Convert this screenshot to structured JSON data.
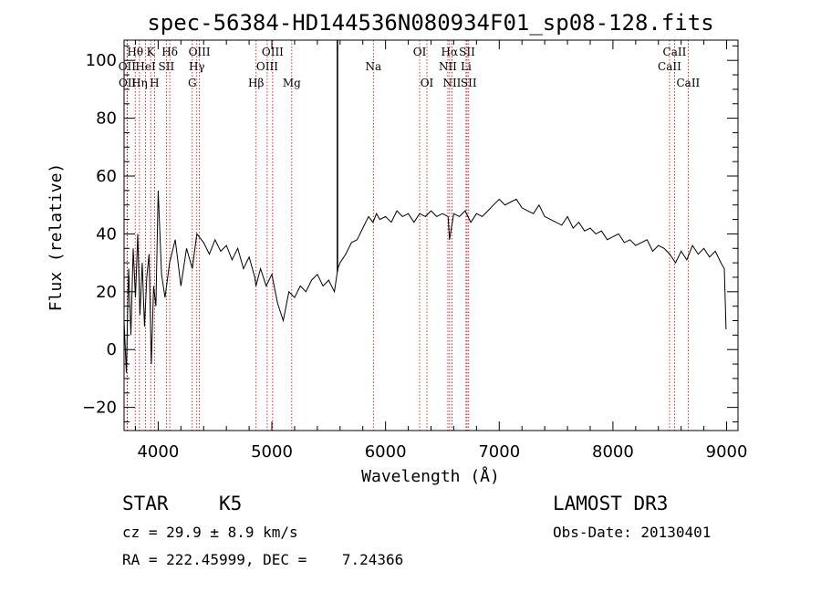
{
  "chart_data": {
    "type": "line",
    "title": "spec-56384-HD144536N080934F01_sp08-128.fits",
    "xlabel": "Wavelength (Å)",
    "ylabel": "Flux (relative)",
    "xlim": [
      3700,
      9100
    ],
    "ylim": [
      -28,
      107
    ],
    "xticks": [
      4000,
      5000,
      6000,
      7000,
      8000,
      9000
    ],
    "yticks": [
      -20,
      0,
      20,
      40,
      60,
      80,
      100
    ],
    "grid": false,
    "series": [
      {
        "name": "flux",
        "x": [
          3700,
          3720,
          3740,
          3760,
          3780,
          3800,
          3820,
          3840,
          3860,
          3880,
          3900,
          3920,
          3940,
          3960,
          3980,
          4000,
          4030,
          4060,
          4100,
          4150,
          4200,
          4250,
          4300,
          4340,
          4400,
          4450,
          4500,
          4550,
          4600,
          4650,
          4700,
          4750,
          4800,
          4850,
          4860,
          4900,
          4950,
          5000,
          5050,
          5100,
          5150,
          5200,
          5250,
          5300,
          5350,
          5400,
          5450,
          5500,
          5550,
          5580,
          5600,
          5650,
          5700,
          5750,
          5800,
          5850,
          5890,
          5920,
          5950,
          6000,
          6050,
          6100,
          6150,
          6200,
          6250,
          6300,
          6350,
          6400,
          6450,
          6500,
          6550,
          6563,
          6600,
          6650,
          6700,
          6750,
          6800,
          6850,
          6900,
          6950,
          7000,
          7050,
          7100,
          7150,
          7200,
          7250,
          7300,
          7350,
          7400,
          7450,
          7500,
          7550,
          7600,
          7650,
          7700,
          7750,
          7800,
          7850,
          7900,
          7950,
          8000,
          8050,
          8100,
          8150,
          8200,
          8250,
          8300,
          8350,
          8400,
          8450,
          8500,
          8550,
          8600,
          8650,
          8700,
          8750,
          8800,
          8850,
          8900,
          8950,
          8980,
          8995
        ],
        "y": [
          10,
          -8,
          28,
          5,
          35,
          18,
          40,
          12,
          30,
          8,
          25,
          33,
          -5,
          22,
          15,
          55,
          26,
          18,
          30,
          38,
          22,
          35,
          28,
          40,
          37,
          33,
          38,
          34,
          36,
          31,
          35,
          28,
          32,
          25,
          22,
          28,
          22,
          26,
          16,
          10,
          20,
          18,
          22,
          20,
          24,
          26,
          22,
          24,
          20,
          28,
          30,
          33,
          37,
          38,
          42,
          46,
          44,
          47,
          45,
          46,
          44,
          48,
          46,
          47,
          44,
          47,
          46,
          48,
          46,
          47,
          46,
          38,
          47,
          46,
          48,
          44,
          47,
          46,
          48,
          50,
          52,
          50,
          51,
          52,
          49,
          48,
          47,
          50,
          46,
          45,
          44,
          43,
          46,
          42,
          44,
          41,
          42,
          40,
          41,
          38,
          39,
          40,
          37,
          38,
          36,
          37,
          38,
          34,
          36,
          35,
          33,
          30,
          34,
          31,
          36,
          33,
          35,
          32,
          34,
          30,
          28,
          7
        ]
      }
    ],
    "spike_x": 5577,
    "emission_lines": [
      {
        "label": "Hθ",
        "x": 3798,
        "row": 1
      },
      {
        "label": "OII",
        "x": 3727,
        "row": 2
      },
      {
        "label": "OII",
        "x": 3729,
        "row": 3
      },
      {
        "label": "K",
        "x": 3934,
        "row": 1
      },
      {
        "label": "HeI",
        "x": 3889,
        "row": 2
      },
      {
        "label": "Hη",
        "x": 3835,
        "row": 3
      },
      {
        "label": "SII",
        "x": 4072,
        "row": 2
      },
      {
        "label": "H",
        "x": 3968,
        "row": 3
      },
      {
        "label": "Hδ",
        "x": 4102,
        "row": 1
      },
      {
        "label": "OIII",
        "x": 4363,
        "row": 1
      },
      {
        "label": "Hγ",
        "x": 4340,
        "row": 2
      },
      {
        "label": "G",
        "x": 4300,
        "row": 3
      },
      {
        "label": "Hβ",
        "x": 4861,
        "row": 3
      },
      {
        "label": "OIII",
        "x": 5007,
        "row": 1
      },
      {
        "label": "OIII",
        "x": 4959,
        "row": 2
      },
      {
        "label": "Mg",
        "x": 5175,
        "row": 3
      },
      {
        "label": "Na",
        "x": 5893,
        "row": 2
      },
      {
        "label": "OI",
        "x": 6300,
        "row": 1
      },
      {
        "label": "OI",
        "x": 6364,
        "row": 3
      },
      {
        "label": "Hα",
        "x": 6563,
        "row": 1
      },
      {
        "label": "SII",
        "x": 6717,
        "row": 1
      },
      {
        "label": "NII",
        "x": 6548,
        "row": 2
      },
      {
        "label": "Li",
        "x": 6708,
        "row": 2
      },
      {
        "label": "NII",
        "x": 6584,
        "row": 3
      },
      {
        "label": "SII",
        "x": 6731,
        "row": 3
      },
      {
        "label": "CaII",
        "x": 8542,
        "row": 1
      },
      {
        "label": "CaII",
        "x": 8498,
        "row": 2
      },
      {
        "label": "CaII",
        "x": 8662,
        "row": 3
      }
    ]
  },
  "footer": {
    "object_type": "STAR",
    "subclass": "K5",
    "survey": "LAMOST DR3",
    "redshift": "cz = 29.9 ± 8.9 km/s",
    "obs_date": "Obs-Date: 20130401",
    "coords": "RA = 222.45999, DEC =    7.24366"
  }
}
